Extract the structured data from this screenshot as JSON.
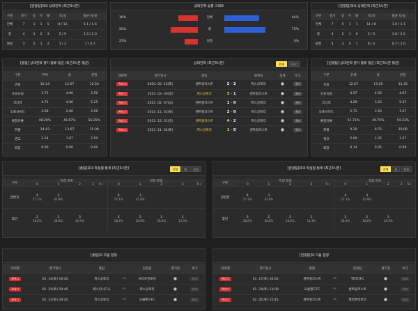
{
  "top_left": {
    "title": "[원정팀]과의 상대전적 (최근3시즌)",
    "headers": [
      "구분",
      "경기",
      "승",
      "무",
      "패",
      "득/실",
      "평균 득/실"
    ],
    "rows": [
      [
        "전체",
        "7",
        "1",
        "1",
        "5",
        "8 / 11",
        "1.1 / 1.6"
      ],
      [
        "홈",
        "4",
        "1",
        "0",
        "3",
        "5 / 9",
        "1.3 / 2.3"
      ],
      [
        "원정",
        "3",
        "0",
        "1",
        "2",
        "3 / 2",
        "1 / 0.7"
      ]
    ]
  },
  "top_center": {
    "title": "상대전적 승률 그래프",
    "rows": [
      {
        "left": "36%",
        "label": "전체",
        "right": "64%",
        "left_frac": 0.36,
        "right_frac": 0.64
      },
      {
        "left": "50%",
        "label": "홈",
        "right": "75%",
        "left_frac": 0.5,
        "right_frac": 0.75
      },
      {
        "left": "25%",
        "label": "원정",
        "right": "0%",
        "left_frac": 0.25,
        "right_frac": 0.0
      }
    ]
  },
  "top_right": {
    "title": "[원정팀]과의 상대전적 (최근3시즌)",
    "headers": [
      "구분",
      "경기",
      "승",
      "무",
      "패",
      "득/실",
      "평균 득/실"
    ],
    "rows": [
      [
        "전체",
        "7",
        "5",
        "1",
        "1",
        "11 / 8",
        "1.6 / 1.1"
      ],
      [
        "홈",
        "3",
        "2",
        "1",
        "0",
        "5 / 3",
        "1.6 / 1.0"
      ],
      [
        "원정",
        "4",
        "3",
        "0",
        "1",
        "6 / 3",
        "0.7 / 1.0"
      ]
    ]
  },
  "mid_left": {
    "title": "[홈팀] 상대전적 경기 종류 평균 (최근3시즌 평균)",
    "headers": [
      "구분",
      "전체",
      "홈",
      "원정"
    ],
    "rows": [
      [
        "슈팅",
        "12.14",
        "12.67",
        "12.50"
      ],
      [
        "유효슈팅",
        "3.71",
        "4.00",
        "3.50"
      ],
      [
        "코너킥",
        "4.71",
        "4.00",
        "5.25"
      ],
      [
        "오프사이드",
        "2.00",
        "2.00",
        "2.00"
      ],
      [
        "볼점유율",
        "48.29%",
        "45.67%",
        "50.25%"
      ],
      [
        "파울",
        "14.43",
        "13.67",
        "15.00"
      ],
      [
        "경고",
        "2.14",
        "1.67",
        "2.50"
      ],
      [
        "퇴장",
        "0.00",
        "0.00",
        "0.00"
      ]
    ]
  },
  "mid_center": {
    "title": "상대전적 (최근3시즌)",
    "tabs": [
      "전체",
      "5경기"
    ],
    "headers": [
      "대회명",
      "경기일시",
      "홈팀",
      "",
      "원정팀",
      "중계",
      "비고"
    ],
    "rows": [
      {
        "league": "A리그",
        "date": "2025. 05. 13(화)",
        "home": "센트럴코스트",
        "hs": "2",
        "as": "2",
        "away": "퍼스글로리",
        "note": "결과",
        "hw": false,
        "aw": false
      },
      {
        "league": "A리그",
        "date": "2025. 03. 30(일)",
        "home": "퍼스글로리",
        "hs": "3",
        "as": "1",
        "away": "센트럴코스트",
        "note": "결과",
        "hw": true,
        "aw": false
      },
      {
        "league": "A리그",
        "date": "2025. 02. 07(금)",
        "home": "센트럴코스트",
        "hs": "1",
        "as": "0",
        "away": "퍼스글로리",
        "note": "결과",
        "hw": false,
        "aw": false
      },
      {
        "league": "A리그",
        "date": "2024. 11. 02(토)",
        "home": "센트럴코스트",
        "hs": "2",
        "as": "0",
        "away": "퍼스글로리",
        "note": "결과",
        "hw": false,
        "aw": false
      },
      {
        "league": "A리그",
        "date": "2023. 12. 31(일)",
        "home": "센트럴코스트",
        "hs": "4",
        "as": "2",
        "away": "퍼스글로리",
        "note": "결과",
        "hw": true,
        "aw": false
      },
      {
        "league": "A리그",
        "date": "2023. 11. 04(토)",
        "home": "퍼스글로리",
        "hs": "1",
        "as": "0",
        "away": "센트럴코스트",
        "note": "결과",
        "hw": true,
        "aw": false
      }
    ]
  },
  "mid_right": {
    "title": "[원정팀] 상대전적 경기 종류 평균 (최근3시즌 평균)",
    "headers": [
      "구분",
      "전체",
      "홈",
      "원정"
    ],
    "rows": [
      [
        "슈팅",
        "12.57",
        "13.50",
        "11.33"
      ],
      [
        "유효슈팅",
        "4.57",
        "4.50",
        "4.67"
      ],
      [
        "코너킥",
        "4.29",
        "3.25",
        "5.67"
      ],
      [
        "오프사이드",
        "2.71",
        "3.50",
        "1.67"
      ],
      [
        "볼점유율",
        "51.71%",
        "49.75%",
        "54.33%"
      ],
      [
        "파울",
        "9.29",
        "8.75",
        "10.00"
      ],
      [
        "경고",
        "2.00",
        "2.25",
        "1.67"
      ],
      [
        "퇴장",
        "0.14",
        "0.25",
        "0.00"
      ]
    ]
  },
  "score_left": {
    "title": "[홈팀]과의 득실점 통계 (최근3시즌)",
    "tabs": [
      "전체",
      "홈",
      "원정"
    ],
    "col_group1": "득점 분포",
    "col_group2": "실점 분포",
    "buckets": [
      "0",
      "1",
      "2",
      "3",
      "5+",
      "0",
      "1",
      "2",
      "3",
      "5+"
    ],
    "rows": [
      {
        "label": "전반전",
        "cells": [
          [
            "4",
            "57.1%"
          ],
          [
            "3",
            "42.9%"
          ],
          [
            "",
            ""
          ],
          [
            "",
            ""
          ],
          [
            "",
            ""
          ],
          [
            "4",
            "57.1%"
          ],
          [
            "3",
            "42.9%"
          ],
          [
            "",
            ""
          ],
          [
            "",
            ""
          ],
          [
            "",
            ""
          ]
        ]
      },
      {
        "label": "후반",
        "cells": [
          [
            "2",
            "28.6%"
          ],
          [
            "2",
            "28.6%"
          ],
          [
            "3",
            "42.9%"
          ],
          [
            "",
            ""
          ],
          [
            "",
            ""
          ],
          [
            "2",
            "28.6%"
          ],
          [
            "2",
            "28.6%"
          ],
          [
            "2",
            "28.6%"
          ],
          [
            "1",
            "14.3%"
          ],
          [
            "",
            ""
          ]
        ]
      }
    ]
  },
  "score_right": {
    "title": "[원정팀]과의 득실점 통계 (최근3시즌)",
    "tabs": [
      "전체",
      "홈",
      "원정"
    ],
    "col_group1": "득점 분포",
    "col_group2": "실점 분포",
    "buckets": [
      "0",
      "1",
      "2",
      "3",
      "5+",
      "0",
      "1",
      "2",
      "3",
      "5+"
    ],
    "rows": [
      {
        "label": "전반전",
        "cells": [
          [
            "4",
            "57.1%"
          ],
          [
            "3",
            "42.9%"
          ],
          [
            "",
            ""
          ],
          [
            "",
            ""
          ],
          [
            "",
            ""
          ],
          [
            "4",
            "57.1%"
          ],
          [
            "3",
            "42.9%"
          ],
          [
            "",
            ""
          ],
          [
            "",
            ""
          ],
          [
            "",
            ""
          ]
        ]
      },
      {
        "label": "후반",
        "cells": [
          [
            "2",
            "28.6%"
          ],
          [
            "2",
            "28.6%"
          ],
          [
            "2",
            "28.6%"
          ],
          [
            "1",
            "14.3%"
          ],
          [
            "",
            ""
          ],
          [
            "2",
            "28.6%"
          ],
          [
            "2",
            "28.6%"
          ],
          [
            "3",
            "42.9%"
          ],
          [
            "",
            ""
          ],
          [
            "",
            ""
          ]
        ]
      }
    ]
  },
  "next_left": {
    "title": "[홈팀]의 다음 일정",
    "headers": [
      "대회명",
      "경기일시",
      "홈팀",
      "",
      "원정팀",
      "경기장",
      "비고"
    ],
    "rows": [
      {
        "league": "A리그",
        "date": "01. 14(토) 19:45",
        "home": "퍼스글로리",
        "vs": "vs",
        "away": "브리즈번로어",
        "note": "비고"
      },
      {
        "league": "A리그",
        "date": "01. 25(토) 19:45",
        "home": "웨스턴시드니",
        "vs": "vs",
        "away": "퍼스글로리",
        "note": "비고"
      },
      {
        "league": "A리그",
        "date": "01. 31(토) 19:45",
        "home": "퍼스글로리",
        "vs": "vs",
        "away": "오클랜드FC",
        "note": "비고"
      }
    ]
  },
  "next_right": {
    "title": "[원정팀]의 다음 일정",
    "headers": [
      "대회명",
      "경기일시",
      "홈팀",
      "",
      "원정팀",
      "경기장",
      "비고"
    ],
    "rows": [
      {
        "league": "A리그",
        "date": "01. 17(토) 16:00",
        "home": "센트럴코스트",
        "vs": "vs",
        "away": "맥아더FC",
        "note": "비고"
      },
      {
        "league": "A리그",
        "date": "01. 24(토) 13:00",
        "home": "오클랜드FC",
        "vs": "vs",
        "away": "센트럴코스트",
        "note": "비고"
      },
      {
        "league": "A리그",
        "date": "02. 01(토) 15:45",
        "home": "센트럴코스트",
        "vs": "vs",
        "away": "멜버른빅토리",
        "note": "비고"
      }
    ]
  }
}
